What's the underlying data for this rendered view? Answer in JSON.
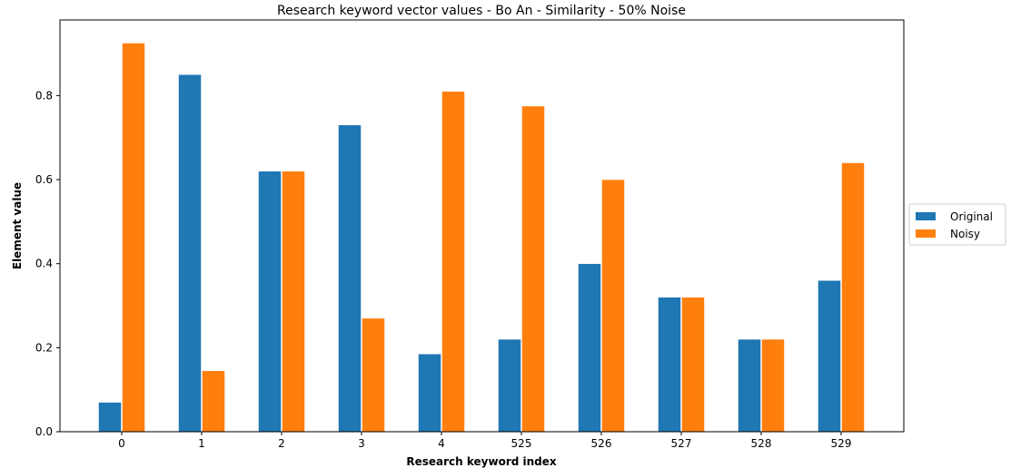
{
  "chart_data": {
    "type": "bar",
    "title": "Research keyword vector values - Bo An - Similarity - 50% Noise",
    "xlabel": "Research keyword index",
    "ylabel": "Element value",
    "categories": [
      "0",
      "1",
      "2",
      "3",
      "4",
      "525",
      "526",
      "527",
      "528",
      "529"
    ],
    "series": [
      {
        "name": "Original",
        "color": "#1f77b4",
        "values": [
          0.07,
          0.85,
          0.62,
          0.73,
          0.185,
          0.22,
          0.4,
          0.32,
          0.22,
          0.36
        ]
      },
      {
        "name": "Noisy",
        "color": "#ff7f0e",
        "values": [
          0.925,
          0.145,
          0.62,
          0.27,
          0.81,
          0.775,
          0.6,
          0.32,
          0.22,
          0.64
        ]
      }
    ],
    "ylim": [
      0,
      0.98
    ],
    "yticks": [
      "0.0",
      "0.2",
      "0.4",
      "0.6",
      "0.8"
    ],
    "grid": false,
    "legend_position": "right"
  }
}
